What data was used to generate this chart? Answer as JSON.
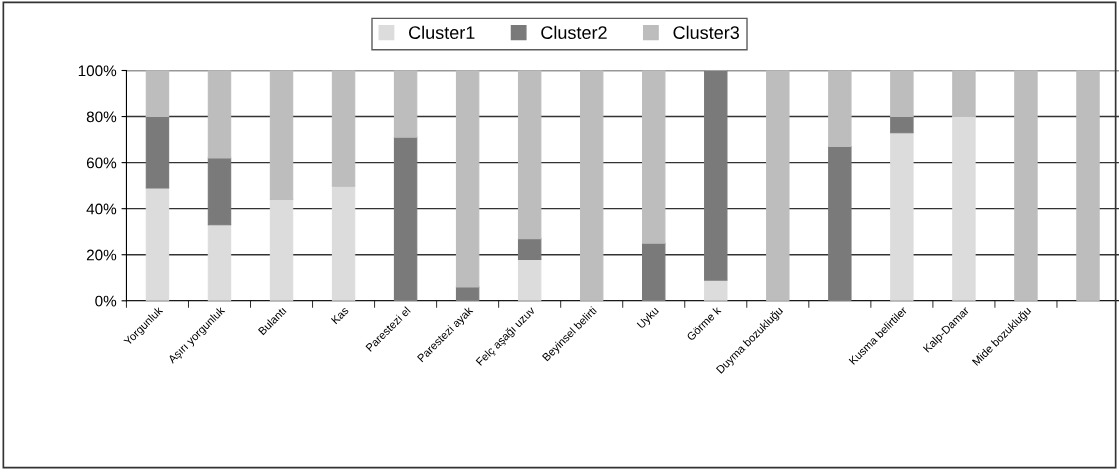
{
  "chart_data": {
    "type": "bar",
    "stacked": true,
    "categories": [
      "Yorgunluk",
      "Aşırı yorgunluk",
      "Bulantı",
      "Kas",
      "Parestezi el",
      "Parestezi ayak",
      "Felç aşağı uzuv",
      "Beyinsel belirti",
      "Uyku",
      "Görme k",
      "Duyma bozukluğu",
      null,
      "Kusma belirtiler",
      "Kalp-Damar",
      "Mide bozukluğu",
      null
    ],
    "series": [
      {
        "name": "Cluster1",
        "color": "#dcdcdc",
        "values": [
          49,
          33,
          44,
          50,
          0,
          0,
          18,
          0,
          0,
          9,
          0,
          0,
          73,
          80,
          0,
          0
        ]
      },
      {
        "name": "Cluster2",
        "color": "#7a7a7a",
        "values": [
          31,
          29,
          0,
          0,
          71,
          6,
          9,
          0,
          25,
          91,
          0,
          67,
          7,
          0,
          0,
          0
        ]
      },
      {
        "name": "Cluster3",
        "color": "#bdbdbd",
        "values": [
          20,
          38,
          56,
          50,
          29,
          94,
          73,
          100,
          75,
          0,
          100,
          33,
          20,
          20,
          100,
          100
        ]
      }
    ],
    "ylim": [
      0,
      100
    ],
    "yticks": [
      {
        "value": 0,
        "label": "0%"
      },
      {
        "value": 20,
        "label": "20%"
      },
      {
        "value": 40,
        "label": "40%"
      },
      {
        "value": 60,
        "label": "60%"
      },
      {
        "value": 80,
        "label": "80%"
      },
      {
        "value": 100,
        "label": "100%"
      }
    ],
    "grid": "y",
    "legend": "top"
  }
}
